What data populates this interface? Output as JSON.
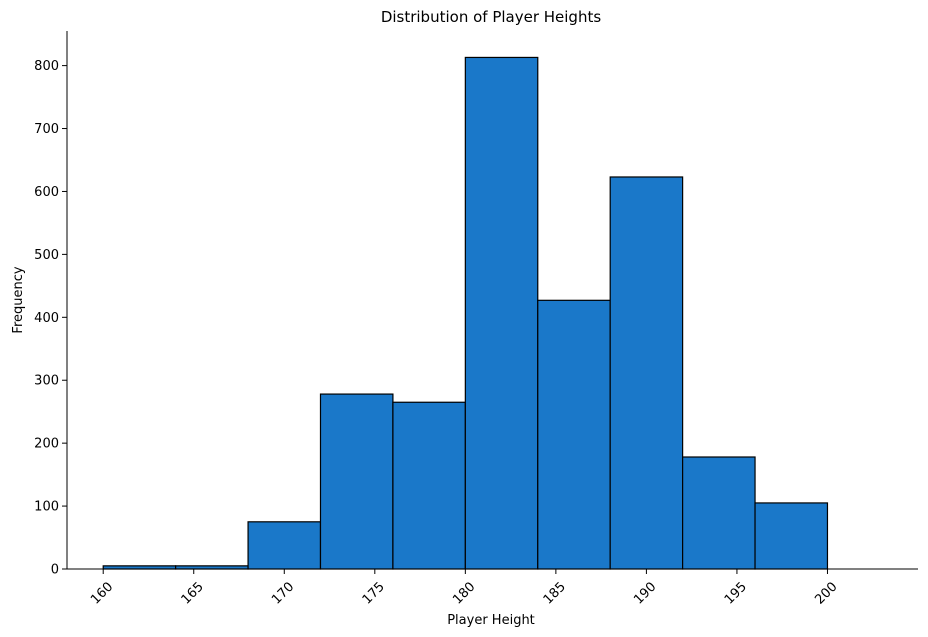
{
  "chart_data": {
    "type": "bar",
    "title": "Distribution of Player Heights",
    "xlabel": "Player Height",
    "ylabel": "Frequency",
    "bin_edges": [
      160,
      164,
      168,
      172,
      176,
      180,
      184,
      188,
      192,
      196,
      200
    ],
    "values": [
      5,
      5,
      75,
      278,
      265,
      813,
      427,
      623,
      178,
      105
    ],
    "xlim": [
      158,
      205
    ],
    "ylim": [
      0,
      855
    ],
    "x_ticks": [
      160,
      165,
      170,
      175,
      180,
      185,
      190,
      195,
      200
    ],
    "y_ticks": [
      0,
      100,
      200,
      300,
      400,
      500,
      600,
      700,
      800
    ],
    "x_tick_rotation": 45,
    "grid": false,
    "legend": "none",
    "bar_color": "#1a78c9",
    "bar_edge_color": "#000000"
  }
}
